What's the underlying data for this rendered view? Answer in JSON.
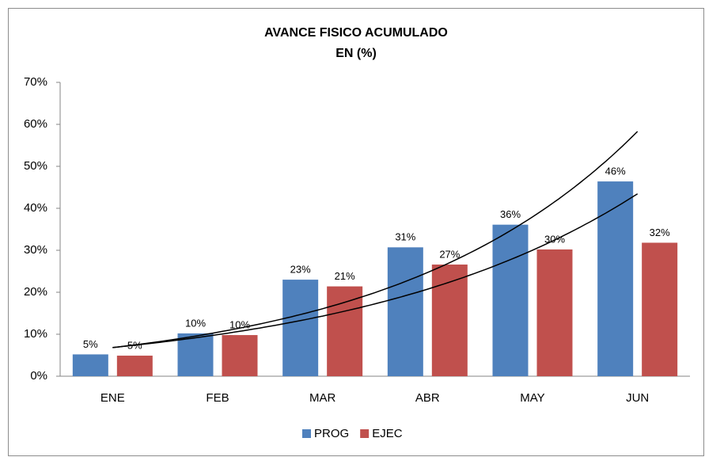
{
  "chart_data": {
    "type": "bar",
    "title": "AVANCE FISICO ACUMULADO",
    "subtitle": "EN (%)",
    "categories": [
      "ENE",
      "FEB",
      "MAR",
      "ABR",
      "MAY",
      "JUN"
    ],
    "series": [
      {
        "name": "PROG",
        "color": "#4f81bd",
        "values": [
          5.2,
          10.2,
          23,
          30.7,
          36.1,
          46.4
        ],
        "value_labels": [
          "5%",
          "10%",
          "23%",
          "31%",
          "36%",
          "46%"
        ]
      },
      {
        "name": "EJEC",
        "color": "#c0504d",
        "values": [
          4.9,
          9.8,
          21.4,
          26.6,
          30.2,
          31.8
        ],
        "value_labels": [
          "5%",
          "10%",
          "21%",
          "27%",
          "30%",
          "32%"
        ]
      }
    ],
    "trendline": "exponential",
    "ylim": [
      0,
      70
    ],
    "yticks": [
      {
        "value": 0,
        "label": "0%"
      },
      {
        "value": 10,
        "label": "10%"
      },
      {
        "value": 20,
        "label": "20%"
      },
      {
        "value": 30,
        "label": "30%"
      },
      {
        "value": 40,
        "label": "40%"
      },
      {
        "value": 50,
        "label": "50%"
      },
      {
        "value": 60,
        "label": "60%"
      },
      {
        "value": 70,
        "label": "70%"
      }
    ],
    "legend": "bottom"
  }
}
